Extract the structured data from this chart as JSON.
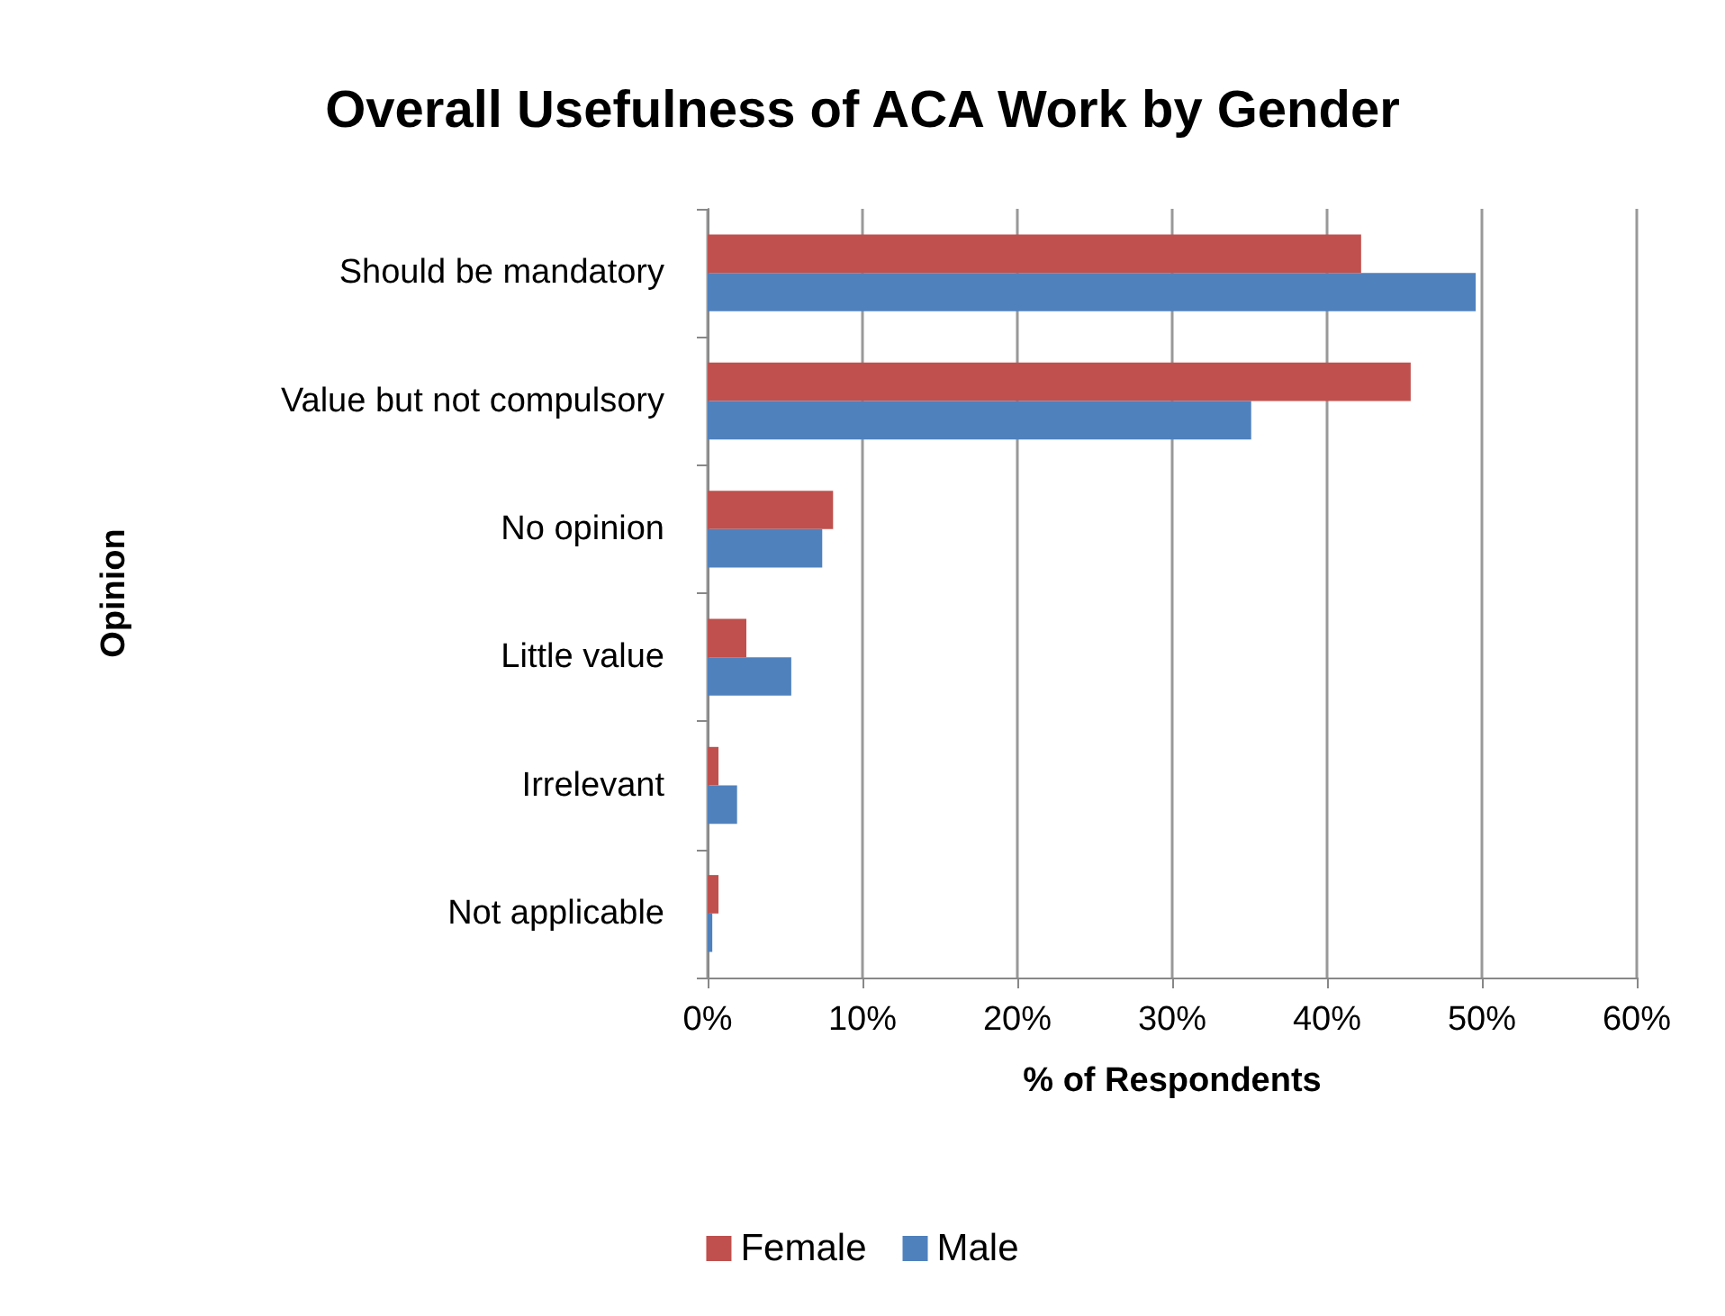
{
  "chart_data": {
    "type": "bar",
    "orientation": "horizontal",
    "title": "Overall Usefulness of ACA Work by Gender",
    "xlabel": "% of Respondents",
    "ylabel": "Opinion",
    "categories": [
      "Should be mandatory",
      "Value but not compulsory",
      "No opinion",
      "Little value",
      "Irrelevant",
      "Not applicable"
    ],
    "series": [
      {
        "name": "Female",
        "color": "#c0504d",
        "values": [
          42.2,
          45.4,
          8.1,
          2.5,
          0.7,
          0.7
        ]
      },
      {
        "name": "Male",
        "color": "#4f81bd",
        "values": [
          49.6,
          35.1,
          7.4,
          5.4,
          1.9,
          0.3
        ]
      }
    ],
    "xlim": [
      0,
      60
    ],
    "xticks": [
      {
        "value": 0,
        "label": "0%"
      },
      {
        "value": 10,
        "label": "10%"
      },
      {
        "value": 20,
        "label": "20%"
      },
      {
        "value": 30,
        "label": "30%"
      },
      {
        "value": 40,
        "label": "40%"
      },
      {
        "value": 50,
        "label": "50%"
      },
      {
        "value": 60,
        "label": "60%"
      }
    ],
    "grid": "x",
    "legend": "bottom"
  }
}
